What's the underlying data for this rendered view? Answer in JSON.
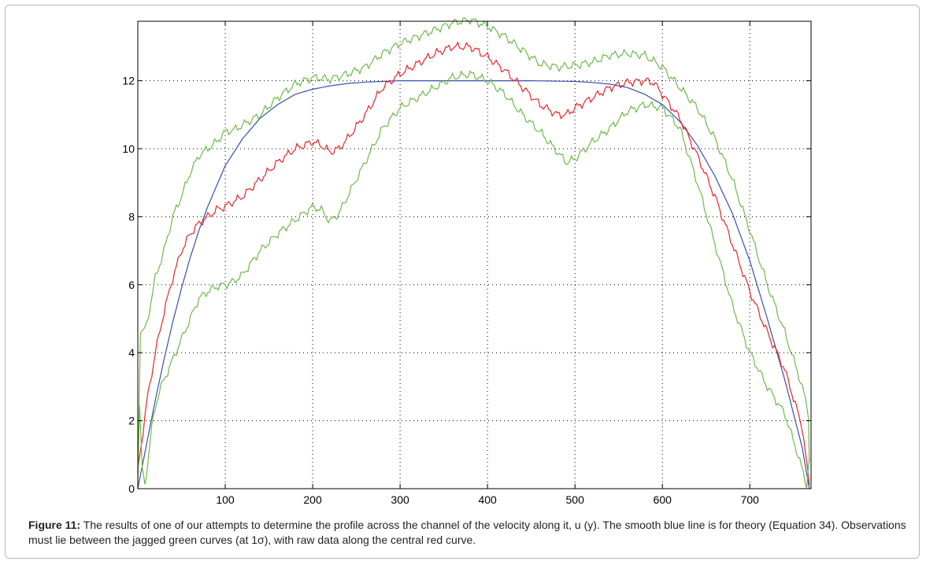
{
  "chart_data": {
    "type": "line",
    "title": "",
    "xlabel": "",
    "ylabel": "",
    "xlim": [
      0,
      770
    ],
    "ylim": [
      0,
      13.75
    ],
    "grid": true,
    "x_ticks": [
      100,
      200,
      300,
      400,
      500,
      600,
      700
    ],
    "y_ticks": [
      0,
      2,
      4,
      6,
      8,
      10,
      12
    ],
    "series": [
      {
        "color": "#3a4fb0",
        "style": "smooth",
        "x": [
          0,
          10,
          20,
          30,
          40,
          50,
          60,
          70,
          80,
          90,
          100,
          120,
          140,
          160,
          180,
          200,
          220,
          240,
          260,
          280,
          300,
          350,
          400,
          450,
          500,
          520,
          540,
          560,
          580,
          600,
          620,
          640,
          660,
          680,
          700,
          720,
          740,
          760,
          768
        ],
        "y": [
          0,
          1.3,
          2.6,
          3.8,
          4.9,
          5.9,
          6.8,
          7.6,
          8.3,
          8.9,
          9.5,
          10.3,
          10.9,
          11.3,
          11.6,
          11.75,
          11.85,
          11.92,
          11.96,
          11.98,
          12.0,
          12.0,
          12.0,
          12.0,
          11.98,
          11.95,
          11.9,
          11.8,
          11.6,
          11.3,
          10.8,
          10.1,
          9.2,
          8.1,
          6.7,
          5.0,
          3.2,
          1.2,
          0
        ]
      },
      {
        "color": "#e8262b",
        "style": "jagged",
        "x": [
          0,
          10,
          20,
          30,
          40,
          50,
          60,
          70,
          80,
          90,
          100,
          120,
          140,
          160,
          180,
          200,
          210,
          220,
          230,
          240,
          260,
          280,
          300,
          320,
          340,
          360,
          380,
          400,
          420,
          440,
          460,
          480,
          490,
          500,
          520,
          540,
          560,
          580,
          590,
          600,
          620,
          640,
          660,
          680,
          700,
          720,
          740,
          760,
          768
        ],
        "y": [
          0.5,
          2.5,
          4.0,
          5.2,
          6.2,
          7.0,
          7.5,
          7.8,
          8.0,
          8.2,
          8.3,
          8.6,
          9.1,
          9.6,
          10.0,
          10.2,
          10.1,
          9.9,
          10.0,
          10.3,
          11.0,
          11.8,
          12.2,
          12.5,
          12.8,
          13.0,
          13.0,
          12.7,
          12.3,
          11.8,
          11.3,
          11.0,
          11.0,
          11.2,
          11.5,
          11.8,
          11.95,
          12.0,
          11.95,
          11.6,
          10.9,
          9.8,
          8.6,
          7.2,
          5.8,
          4.6,
          3.5,
          1.8,
          0.1
        ]
      },
      {
        "color": "#6dba4b",
        "style": "jagged",
        "x": [
          0,
          3,
          6,
          10,
          15,
          20,
          25,
          30,
          40,
          50,
          60,
          70,
          80,
          90,
          100,
          110,
          120,
          140,
          160,
          180,
          200,
          220,
          240,
          260,
          280,
          300,
          320,
          340,
          360,
          380,
          400,
          420,
          440,
          460,
          480,
          500,
          520,
          540,
          560,
          580,
          600,
          620,
          640,
          660,
          680,
          700,
          720,
          740,
          760,
          767,
          768
        ],
        "y": [
          0.5,
          4.7,
          4.6,
          4.8,
          5.5,
          6.2,
          6.6,
          7.0,
          8.0,
          8.6,
          9.3,
          9.8,
          10.0,
          10.2,
          10.5,
          10.55,
          10.7,
          11.0,
          11.5,
          11.9,
          12.1,
          12.05,
          12.2,
          12.4,
          12.8,
          13.1,
          13.3,
          13.5,
          13.7,
          13.8,
          13.6,
          13.3,
          12.9,
          12.5,
          12.4,
          12.45,
          12.55,
          12.75,
          12.8,
          12.75,
          12.4,
          11.8,
          11.2,
          10.3,
          9.1,
          7.6,
          6.0,
          4.6,
          3.0,
          2.2,
          0.8
        ]
      },
      {
        "color": "#6dba4b",
        "style": "jagged",
        "x": [
          0,
          2,
          5,
          8,
          12,
          16,
          20,
          25,
          30,
          40,
          50,
          60,
          70,
          80,
          90,
          100,
          110,
          120,
          140,
          160,
          180,
          200,
          210,
          220,
          230,
          240,
          260,
          280,
          300,
          320,
          340,
          360,
          380,
          400,
          420,
          440,
          460,
          470,
          480,
          490,
          500,
          520,
          540,
          560,
          580,
          600,
          620,
          640,
          660,
          680,
          700,
          720,
          740,
          755,
          765,
          768
        ],
        "y": [
          0.2,
          2.4,
          0.6,
          0.1,
          0.9,
          1.8,
          2.4,
          2.9,
          3.2,
          3.8,
          4.4,
          5.0,
          5.6,
          5.8,
          5.95,
          6.0,
          6.1,
          6.3,
          7.0,
          7.5,
          7.9,
          8.3,
          8.2,
          7.85,
          8.1,
          8.6,
          9.6,
          10.6,
          11.2,
          11.5,
          11.8,
          12.1,
          12.2,
          12.0,
          11.6,
          11.0,
          10.5,
          10.2,
          9.9,
          9.6,
          9.7,
          10.2,
          10.6,
          11.1,
          11.3,
          11.2,
          10.6,
          9.0,
          7.2,
          5.4,
          4.0,
          3.0,
          2.2,
          1.0,
          0.1,
          0.9
        ]
      }
    ]
  },
  "caption": {
    "label": "Figure 11:",
    "text": " The results of one of our attempts to determine the profile across the channel of the velocity along it, u (y). The smooth blue line is for theory (Equation 34). Observations must lie between the jagged green curves (at 1σ), with raw data along the central red curve."
  }
}
